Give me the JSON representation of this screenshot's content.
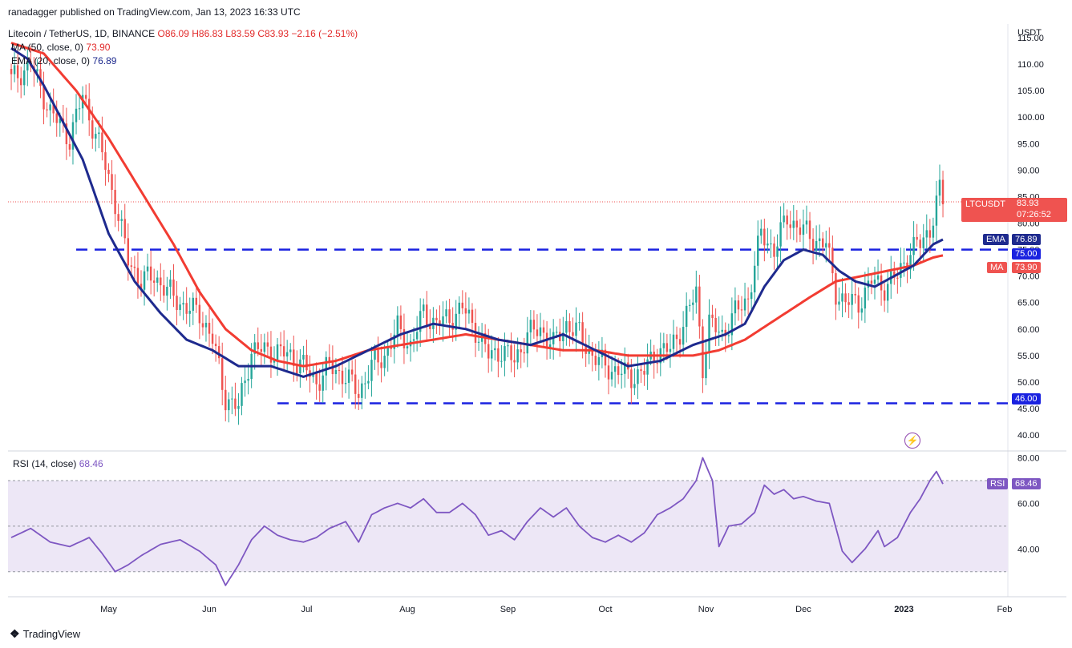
{
  "publisher": "ranadagger published on TradingView.com, Jan 13, 2023 16:33 UTC",
  "symbol": "Litecoin / TetherUS, 1D, BINANCE",
  "ohlc": {
    "o": "O86.09",
    "h": "H86.83",
    "l": "L83.59",
    "c": "C83.93",
    "chg": "−2.16 (−2.51%)"
  },
  "ma_legend": {
    "label": "MA (50, close, 0)",
    "value": "73.90"
  },
  "ema_legend": {
    "label": "EMA (20, close, 0)",
    "value": "76.89"
  },
  "rsi_legend": {
    "label": "RSI (14, close)",
    "value": "68.46"
  },
  "currency": "USDT",
  "tags": {
    "price_name": "LTCUSDT",
    "price": "83.93",
    "countdown": "07:26:52",
    "ema_name": "EMA",
    "ema": "76.89",
    "level_75": "75.00",
    "ma_name": "MA",
    "ma": "73.90",
    "level_46": "46.00",
    "rsi_name": "RSI",
    "rsi": "68.46"
  },
  "colors": {
    "up": "#26a69a",
    "down": "#ef5350",
    "ema": "#1e2a8e",
    "ma": "#f23c32",
    "level": "#1a22e0",
    "rsi": "#7e57c2",
    "rsi_band": "#ede7f6"
  },
  "footer": "TradingView",
  "chart_data": {
    "type": "line",
    "price_axis": {
      "ticks": [
        40,
        45,
        50,
        55,
        60,
        65,
        70,
        75,
        80,
        85,
        90,
        95,
        100,
        105,
        110,
        115
      ],
      "ylim": [
        37,
        116.5
      ]
    },
    "rsi_axis": {
      "ticks": [
        40,
        60,
        80
      ],
      "ylim": [
        19,
        83
      ]
    },
    "x_ticks": [
      {
        "label": "May",
        "day": 30
      },
      {
        "label": "Jun",
        "day": 61
      },
      {
        "label": "Jul",
        "day": 91
      },
      {
        "label": "Aug",
        "day": 122
      },
      {
        "label": "Sep",
        "day": 153
      },
      {
        "label": "Oct",
        "day": 183
      },
      {
        "label": "Nov",
        "day": 214
      },
      {
        "label": "Dec",
        "day": 244
      },
      {
        "label": "2023",
        "day": 275
      },
      {
        "label": "Feb",
        "day": 306
      }
    ],
    "horizontal_levels": [
      {
        "value": 75.0,
        "label": "75.00"
      },
      {
        "value": 46.0,
        "label": "46.00"
      }
    ],
    "rsi_bands": [
      30,
      70
    ],
    "close_anchors": [
      [
        0,
        107
      ],
      [
        6,
        110
      ],
      [
        12,
        101
      ],
      [
        18,
        96
      ],
      [
        22,
        104
      ],
      [
        28,
        93
      ],
      [
        32,
        84
      ],
      [
        36,
        73
      ],
      [
        40,
        69
      ],
      [
        44,
        70
      ],
      [
        50,
        66
      ],
      [
        54,
        64
      ],
      [
        58,
        63
      ],
      [
        62,
        58
      ],
      [
        66,
        47
      ],
      [
        70,
        45
      ],
      [
        74,
        56
      ],
      [
        80,
        56
      ],
      [
        86,
        55
      ],
      [
        90,
        53
      ],
      [
        94,
        50
      ],
      [
        98,
        53
      ],
      [
        103,
        51
      ],
      [
        107,
        48
      ],
      [
        111,
        53
      ],
      [
        115,
        55
      ],
      [
        119,
        60
      ],
      [
        123,
        57
      ],
      [
        127,
        63
      ],
      [
        131,
        61
      ],
      [
        135,
        62
      ],
      [
        139,
        64
      ],
      [
        143,
        60
      ],
      [
        147,
        55
      ],
      [
        151,
        56
      ],
      [
        155,
        54
      ],
      [
        159,
        59
      ],
      [
        163,
        60
      ],
      [
        167,
        57
      ],
      [
        171,
        61
      ],
      [
        175,
        59
      ],
      [
        179,
        55
      ],
      [
        183,
        53
      ],
      [
        187,
        52
      ],
      [
        191,
        51
      ],
      [
        195,
        52
      ],
      [
        199,
        56
      ],
      [
        203,
        56
      ],
      [
        207,
        61
      ],
      [
        211,
        67
      ],
      [
        213,
        53
      ],
      [
        215,
        61
      ],
      [
        219,
        59
      ],
      [
        223,
        63
      ],
      [
        227,
        66
      ],
      [
        231,
        78
      ],
      [
        235,
        75
      ],
      [
        239,
        81
      ],
      [
        243,
        79
      ],
      [
        247,
        77
      ],
      [
        251,
        76
      ],
      [
        254,
        67
      ],
      [
        257,
        65
      ],
      [
        261,
        65
      ],
      [
        265,
        69
      ],
      [
        269,
        68
      ],
      [
        273,
        70
      ],
      [
        277,
        75
      ],
      [
        280,
        76
      ],
      [
        283,
        79
      ],
      [
        286,
        86
      ],
      [
        287,
        84
      ]
    ],
    "ema20_anchors": [
      [
        0,
        113
      ],
      [
        5,
        111
      ],
      [
        10,
        106
      ],
      [
        16,
        99
      ],
      [
        22,
        92
      ],
      [
        30,
        78
      ],
      [
        38,
        69
      ],
      [
        46,
        63
      ],
      [
        54,
        58
      ],
      [
        62,
        56
      ],
      [
        70,
        53
      ],
      [
        80,
        53
      ],
      [
        90,
        51
      ],
      [
        100,
        53
      ],
      [
        110,
        56
      ],
      [
        120,
        59
      ],
      [
        130,
        61
      ],
      [
        140,
        60
      ],
      [
        150,
        58
      ],
      [
        160,
        57
      ],
      [
        170,
        59
      ],
      [
        180,
        56
      ],
      [
        190,
        53
      ],
      [
        200,
        54
      ],
      [
        210,
        57
      ],
      [
        215,
        58
      ],
      [
        220,
        59
      ],
      [
        226,
        61
      ],
      [
        232,
        68
      ],
      [
        238,
        73
      ],
      [
        244,
        75
      ],
      [
        250,
        74
      ],
      [
        255,
        71
      ],
      [
        260,
        69
      ],
      [
        266,
        68
      ],
      [
        272,
        70
      ],
      [
        278,
        72
      ],
      [
        284,
        76
      ],
      [
        287,
        76.9
      ]
    ],
    "ma50_anchors": [
      [
        0,
        114
      ],
      [
        10,
        112
      ],
      [
        20,
        105
      ],
      [
        30,
        96
      ],
      [
        40,
        86
      ],
      [
        50,
        76
      ],
      [
        58,
        67
      ],
      [
        66,
        60
      ],
      [
        74,
        56
      ],
      [
        82,
        54
      ],
      [
        90,
        53
      ],
      [
        100,
        54
      ],
      [
        110,
        56
      ],
      [
        120,
        57
      ],
      [
        130,
        58
      ],
      [
        140,
        59
      ],
      [
        150,
        58
      ],
      [
        160,
        57
      ],
      [
        170,
        56
      ],
      [
        180,
        56
      ],
      [
        190,
        55
      ],
      [
        200,
        55
      ],
      [
        210,
        55
      ],
      [
        218,
        56
      ],
      [
        226,
        58
      ],
      [
        236,
        62
      ],
      [
        246,
        66
      ],
      [
        254,
        69
      ],
      [
        262,
        70
      ],
      [
        270,
        71
      ],
      [
        278,
        72
      ],
      [
        284,
        73.5
      ],
      [
        287,
        73.9
      ]
    ],
    "rsi_anchors": [
      [
        0,
        45
      ],
      [
        6,
        49
      ],
      [
        12,
        43
      ],
      [
        18,
        41
      ],
      [
        24,
        45
      ],
      [
        28,
        38
      ],
      [
        32,
        30
      ],
      [
        36,
        33
      ],
      [
        40,
        37
      ],
      [
        46,
        42
      ],
      [
        52,
        44
      ],
      [
        58,
        39
      ],
      [
        63,
        33
      ],
      [
        66,
        24
      ],
      [
        70,
        33
      ],
      [
        74,
        44
      ],
      [
        78,
        50
      ],
      [
        82,
        46
      ],
      [
        86,
        44
      ],
      [
        90,
        43
      ],
      [
        94,
        45
      ],
      [
        98,
        49
      ],
      [
        103,
        52
      ],
      [
        107,
        43
      ],
      [
        111,
        55
      ],
      [
        115,
        58
      ],
      [
        119,
        60
      ],
      [
        123,
        58
      ],
      [
        127,
        62
      ],
      [
        131,
        56
      ],
      [
        135,
        56
      ],
      [
        139,
        60
      ],
      [
        143,
        55
      ],
      [
        147,
        46
      ],
      [
        151,
        48
      ],
      [
        155,
        44
      ],
      [
        159,
        52
      ],
      [
        163,
        58
      ],
      [
        167,
        54
      ],
      [
        171,
        58
      ],
      [
        175,
        50
      ],
      [
        179,
        45
      ],
      [
        183,
        43
      ],
      [
        187,
        46
      ],
      [
        191,
        43
      ],
      [
        195,
        47
      ],
      [
        199,
        55
      ],
      [
        203,
        58
      ],
      [
        207,
        62
      ],
      [
        211,
        70
      ],
      [
        213,
        80
      ],
      [
        216,
        70
      ],
      [
        218,
        41
      ],
      [
        221,
        50
      ],
      [
        225,
        51
      ],
      [
        229,
        56
      ],
      [
        232,
        68
      ],
      [
        235,
        64
      ],
      [
        238,
        66
      ],
      [
        241,
        62
      ],
      [
        244,
        63
      ],
      [
        248,
        61
      ],
      [
        252,
        60
      ],
      [
        256,
        39
      ],
      [
        259,
        34
      ],
      [
        263,
        40
      ],
      [
        267,
        48
      ],
      [
        269,
        41
      ],
      [
        273,
        45
      ],
      [
        277,
        56
      ],
      [
        280,
        62
      ],
      [
        283,
        70
      ],
      [
        285,
        74
      ],
      [
        287,
        68.5
      ]
    ]
  }
}
